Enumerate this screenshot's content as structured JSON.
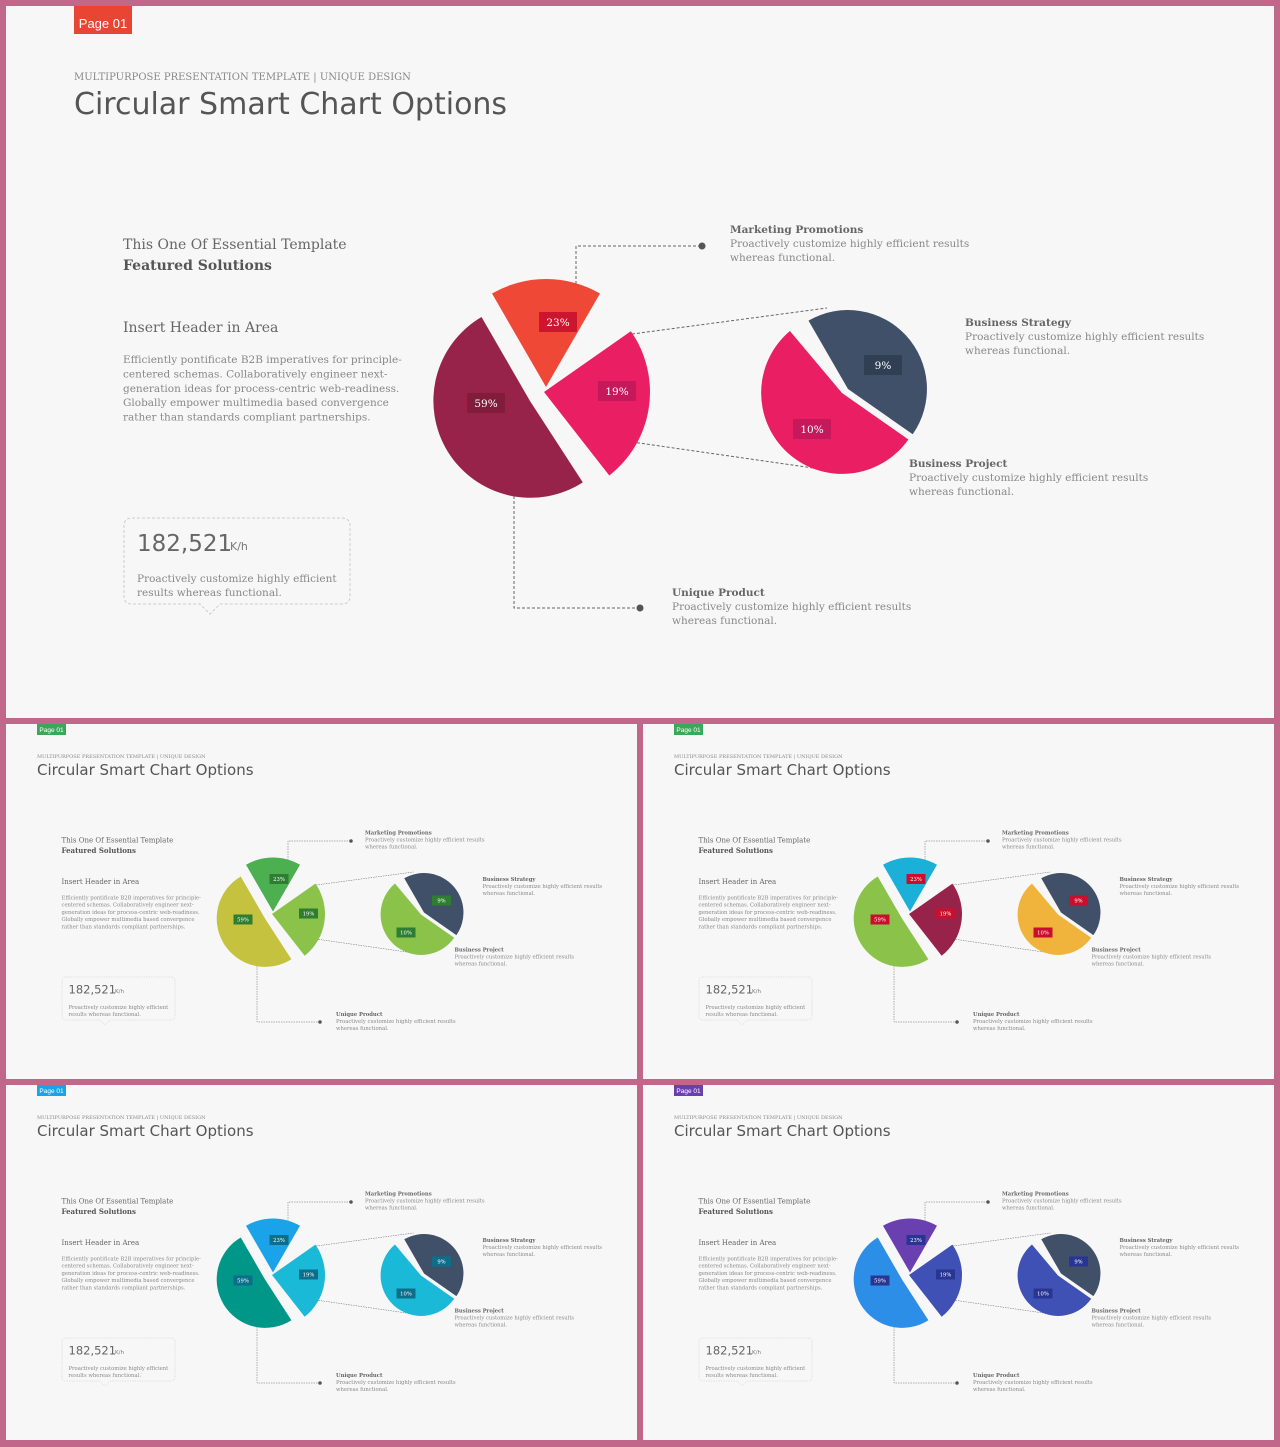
{
  "common": {
    "page_badge": "Page 01",
    "kicker": "MULTIPURPOSE PRESENTATION TEMPLATE | UNIQUE DESIGN",
    "title": "Circular Smart Chart Options",
    "intro_line1": "This One Of Essential  Template",
    "intro_line2": "Featured Solutions",
    "header_label": "Insert Header  in Area",
    "body_lines": [
      "Efficiently pontificate B2B imperatives for principle-",
      "centered schemas. Collaboratively engineer next-",
      "generation ideas for process-centric web-readiness.",
      "Globally empower multimedia based convergence",
      "rather than standards compliant partnerships."
    ],
    "stat_value": "182,521",
    "stat_unit": "K/h",
    "stat_lines": [
      "Proactively customize highly efficient",
      "results whereas functional."
    ],
    "callouts": {
      "marketing": {
        "title": "Marketing Promotions",
        "lines": [
          "Proactively customize highly efficient results",
          "whereas functional."
        ]
      },
      "strategy": {
        "title": "Business Strategy",
        "lines": [
          "Proactively customize highly efficient results",
          "whereas functional."
        ]
      },
      "project": {
        "title": "Business Project",
        "lines": [
          "Proactively customize highly efficient results",
          "whereas functional."
        ]
      },
      "unique": {
        "title": "Unique Product",
        "lines": [
          "Proactively customize highly efficient results",
          "whereas functional."
        ]
      }
    }
  },
  "chart_data": {
    "type": "pie",
    "main_pie": {
      "labels": [
        "59%",
        "23%",
        "19%"
      ]
    },
    "sub_pie": {
      "labels": [
        "9%",
        "10%"
      ]
    },
    "small_labels": [
      "59%",
      "23%",
      "19%",
      "9%",
      "10%"
    ]
  },
  "slides": [
    {
      "badge_color": "#e94535",
      "c1": "#98234a",
      "c2": "#f04836",
      "c3": "#e91e63",
      "c4": "#3f5068",
      "c5": "#e91e63",
      "label_bg": "#c8102e"
    },
    {
      "badge_color": "#3aa856",
      "c1": "#c5c23f",
      "c2": "#4caf50",
      "c3": "#8bc34a",
      "c4": "#3f5068",
      "c5": "#8bc34a",
      "label_bg": "#2e7d32"
    },
    {
      "badge_color": "#3aa856",
      "c1": "#8bc34a",
      "c2": "#1ab0d8",
      "c3": "#98234a",
      "c4": "#3f5068",
      "c5": "#f0b43c",
      "label_bg": "#c8102e"
    },
    {
      "badge_color": "#1aa3e8",
      "c1": "#009688",
      "c2": "#1aa3e8",
      "c3": "#1ab9d8",
      "c4": "#3f5068",
      "c5": "#1ab9d8",
      "label_bg": "#0d6e8a"
    },
    {
      "badge_color": "#6a3fb0",
      "c1": "#2d8ee8",
      "c2": "#6a3fb0",
      "c3": "#3f51b5",
      "c4": "#3f5068",
      "c5": "#3f51b5",
      "label_bg": "#283593"
    }
  ]
}
